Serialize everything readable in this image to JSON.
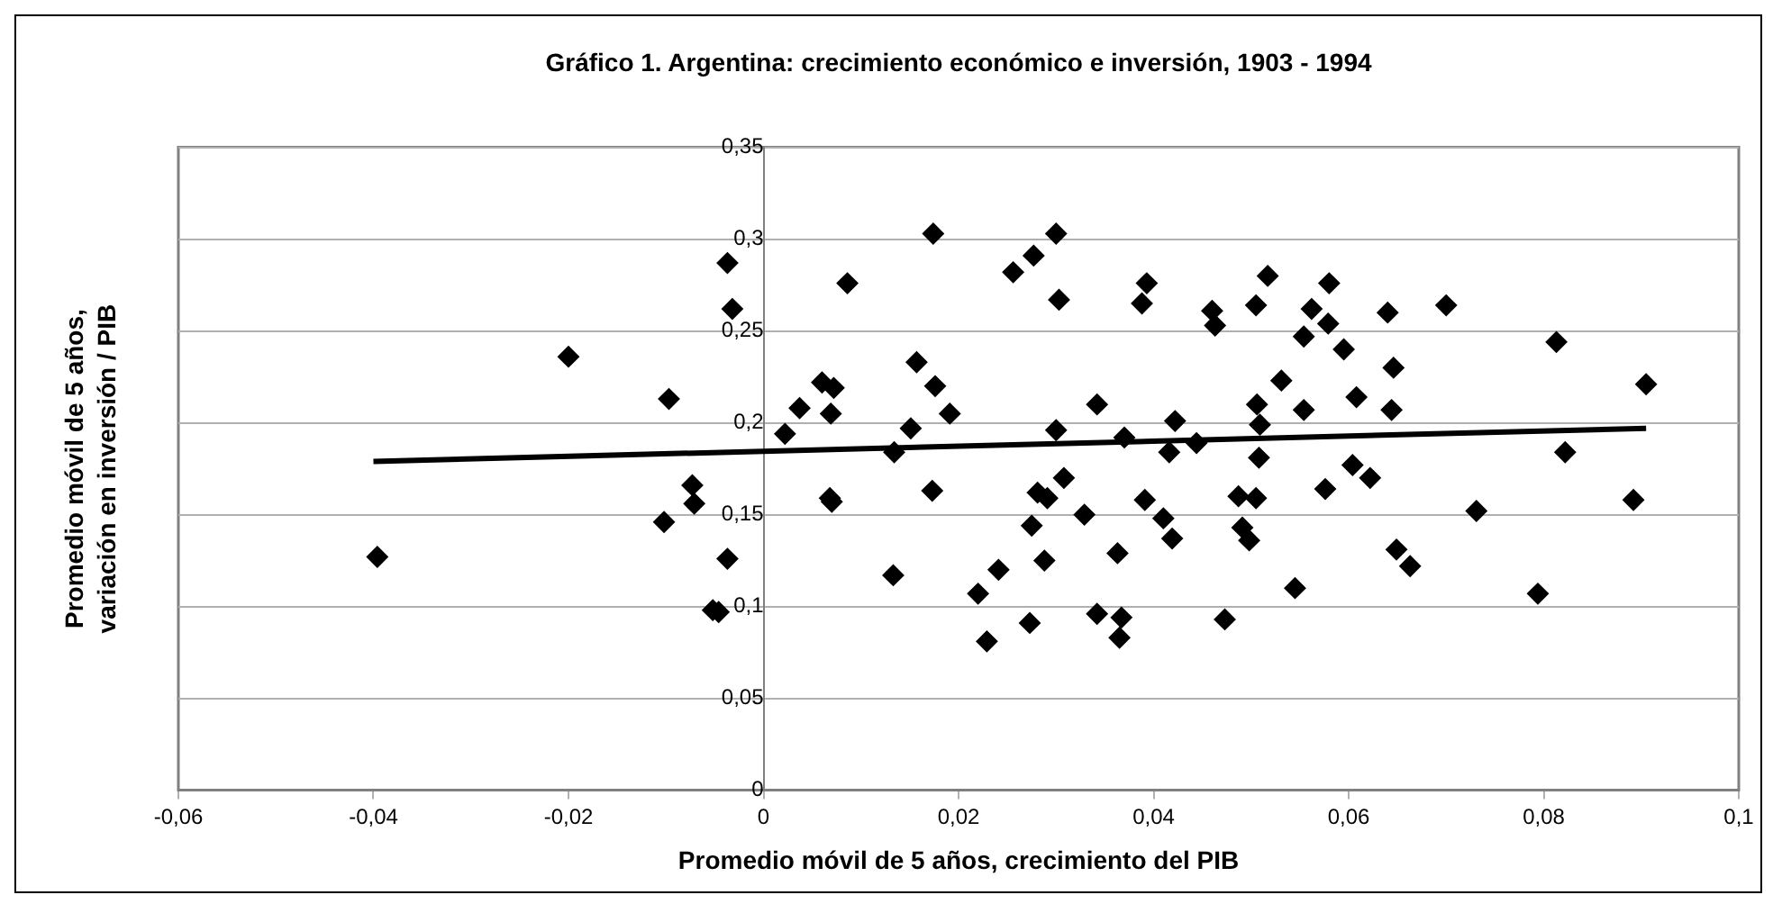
{
  "chart_data": {
    "type": "scatter",
    "title": "Gráfico 1. Argentina: crecimiento económico e inversión, 1903 - 1994",
    "xlabel": "Promedio móvil de 5 años, crecimiento del PIB",
    "ylabel": "Promedio móvil de 5 años, variación en inversión / PIB",
    "xlim": [
      -0.06,
      0.1
    ],
    "ylim": [
      0,
      0.35
    ],
    "xticks": [
      {
        "value": -0.06,
        "label": "-0,06"
      },
      {
        "value": -0.04,
        "label": "-0,04"
      },
      {
        "value": -0.02,
        "label": "-0,02"
      },
      0,
      {
        "value": 0.02,
        "label": "0,02"
      },
      {
        "value": 0.04,
        "label": "0,04"
      },
      {
        "value": 0.06,
        "label": "0,06"
      },
      {
        "value": 0.08,
        "label": "0,08"
      },
      {
        "value": 0.1,
        "label": "0,1"
      }
    ],
    "yticks": [
      0,
      {
        "value": 0.05,
        "label": "0,05"
      },
      {
        "value": 0.1,
        "label": "0,1"
      },
      {
        "value": 0.15,
        "label": "0,15"
      },
      {
        "value": 0.2,
        "label": "0,2"
      },
      {
        "value": 0.25,
        "label": "0,25"
      },
      {
        "value": 0.3,
        "label": "0,3"
      },
      {
        "value": 0.35,
        "label": "0,35"
      }
    ],
    "grid": "y",
    "legend": false,
    "series": [
      {
        "marker": "diamond",
        "color": "#000000",
        "x": [
          -0.0396,
          -0.02,
          -0.0097,
          -0.0102,
          -0.0073,
          -0.0071,
          -0.0037,
          -0.0032,
          -0.0037,
          -0.0052,
          -0.0046,
          0.0022,
          0.0037,
          0.006,
          0.0072,
          0.0069,
          0.0068,
          0.007,
          0.0086,
          0.0174,
          0.0134,
          0.0151,
          0.0157,
          0.0176,
          0.0191,
          0.0173,
          0.0133,
          0.022,
          0.0241,
          0.0229,
          0.0273,
          0.0256,
          0.0277,
          0.03,
          0.0303,
          0.03,
          0.0308,
          0.0281,
          0.0291,
          0.0275,
          0.0288,
          0.0329,
          0.0342,
          0.0342,
          0.0393,
          0.0388,
          0.037,
          0.0363,
          0.0367,
          0.0365,
          0.0391,
          0.041,
          0.0419,
          0.0422,
          0.0416,
          0.0444,
          0.046,
          0.0463,
          0.0473,
          0.0487,
          0.0491,
          0.0498,
          0.0505,
          0.0505,
          0.0517,
          0.0506,
          0.0509,
          0.0508,
          0.0531,
          0.0545,
          0.0554,
          0.0562,
          0.0554,
          0.058,
          0.0579,
          0.0595,
          0.0576,
          0.0604,
          0.0608,
          0.0622,
          0.064,
          0.0646,
          0.0644,
          0.0649,
          0.0663,
          0.07,
          0.0731,
          0.0813,
          0.0822,
          0.0794,
          0.0905,
          0.0892
        ],
        "values": [
          0.127,
          0.236,
          0.213,
          0.146,
          0.166,
          0.156,
          0.287,
          0.262,
          0.126,
          0.098,
          0.097,
          0.194,
          0.208,
          0.222,
          0.219,
          0.205,
          0.159,
          0.157,
          0.276,
          0.303,
          0.184,
          0.197,
          0.233,
          0.22,
          0.205,
          0.163,
          0.117,
          0.107,
          0.12,
          0.081,
          0.091,
          0.282,
          0.291,
          0.303,
          0.267,
          0.196,
          0.17,
          0.162,
          0.159,
          0.144,
          0.125,
          0.15,
          0.21,
          0.096,
          0.276,
          0.265,
          0.192,
          0.129,
          0.094,
          0.083,
          0.158,
          0.148,
          0.137,
          0.201,
          0.184,
          0.189,
          0.261,
          0.253,
          0.093,
          0.16,
          0.143,
          0.136,
          0.159,
          0.264,
          0.28,
          0.21,
          0.199,
          0.181,
          0.223,
          0.11,
          0.247,
          0.262,
          0.207,
          0.276,
          0.254,
          0.24,
          0.164,
          0.177,
          0.214,
          0.17,
          0.26,
          0.23,
          0.207,
          0.131,
          0.122,
          0.264,
          0.152,
          0.244,
          0.184,
          0.107,
          0.221,
          0.158
        ]
      },
      {
        "type": "line",
        "marker": "none",
        "line_style": "solid",
        "color": "#000000",
        "x": [
          -0.04,
          0.0905
        ],
        "values": [
          0.179,
          0.197
        ]
      }
    ]
  }
}
